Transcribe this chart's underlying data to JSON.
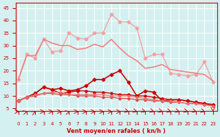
{
  "x": [
    0,
    1,
    2,
    3,
    4,
    5,
    6,
    7,
    8,
    9,
    10,
    11,
    12,
    13,
    14,
    15,
    16,
    17,
    18,
    19,
    20,
    21,
    22,
    23
  ],
  "line1": [
    16.5,
    26.5,
    25.0,
    32.5,
    27.5,
    28.0,
    35.0,
    33.0,
    32.5,
    35.0,
    35.0,
    42.5,
    39.5,
    39.5,
    37.0,
    25.0,
    26.5,
    26.5,
    19.0,
    18.5,
    18.0,
    18.5,
    23.5,
    15.5
  ],
  "line2": [
    16.5,
    26.0,
    26.0,
    32.5,
    31.0,
    30.0,
    30.0,
    28.5,
    29.0,
    30.5,
    29.5,
    32.5,
    29.0,
    26.0,
    24.0,
    21.0,
    21.5,
    22.5,
    20.5,
    20.0,
    19.5,
    19.0,
    18.5,
    16.0
  ],
  "line3": [
    8.0,
    9.5,
    11.0,
    13.5,
    12.5,
    13.0,
    12.0,
    12.5,
    14.0,
    16.5,
    16.5,
    18.5,
    20.0,
    15.5,
    10.0,
    12.0,
    11.5,
    8.0,
    8.5,
    8.5,
    8.0,
    7.5,
    7.0,
    6.5
  ],
  "line4": [
    8.0,
    9.5,
    11.0,
    13.5,
    12.5,
    11.0,
    11.5,
    12.0,
    12.0,
    11.5,
    11.5,
    11.0,
    10.5,
    10.5,
    10.0,
    10.0,
    9.5,
    9.0,
    8.5,
    8.5,
    8.0,
    7.5,
    7.0,
    6.5
  ],
  "line5": [
    8.0,
    9.5,
    10.0,
    11.0,
    11.0,
    10.5,
    10.5,
    10.0,
    10.0,
    10.0,
    9.5,
    9.5,
    9.0,
    9.0,
    8.5,
    8.5,
    8.0,
    8.0,
    7.5,
    7.5,
    7.0,
    7.0,
    6.5,
    6.0
  ],
  "line6": [
    8.0,
    9.5,
    10.5,
    11.0,
    11.5,
    11.5,
    10.5,
    10.5,
    10.5,
    10.5,
    10.5,
    10.0,
    10.0,
    10.0,
    9.5,
    9.0,
    8.5,
    8.0,
    8.0,
    7.5,
    7.0,
    7.0,
    6.5,
    6.0
  ],
  "xlabel": "Vent moyen/en rafales ( kn/h )",
  "yticks": [
    5,
    10,
    15,
    20,
    25,
    30,
    35,
    40,
    45
  ],
  "xticks": [
    0,
    1,
    2,
    3,
    4,
    5,
    6,
    7,
    8,
    9,
    10,
    11,
    12,
    13,
    14,
    15,
    16,
    17,
    18,
    19,
    20,
    21,
    22,
    23
  ],
  "ylim": [
    4,
    47
  ],
  "xlim": [
    -0.3,
    23.5
  ],
  "bg_color": "#d4f0f0",
  "grid_color": "#ffffff",
  "color_pink_light": "#f5a0a0",
  "color_pink_mid": "#f08080",
  "color_red_dark": "#cc0000",
  "color_red_med": "#dd4444",
  "color_red_light2": "#e87070"
}
